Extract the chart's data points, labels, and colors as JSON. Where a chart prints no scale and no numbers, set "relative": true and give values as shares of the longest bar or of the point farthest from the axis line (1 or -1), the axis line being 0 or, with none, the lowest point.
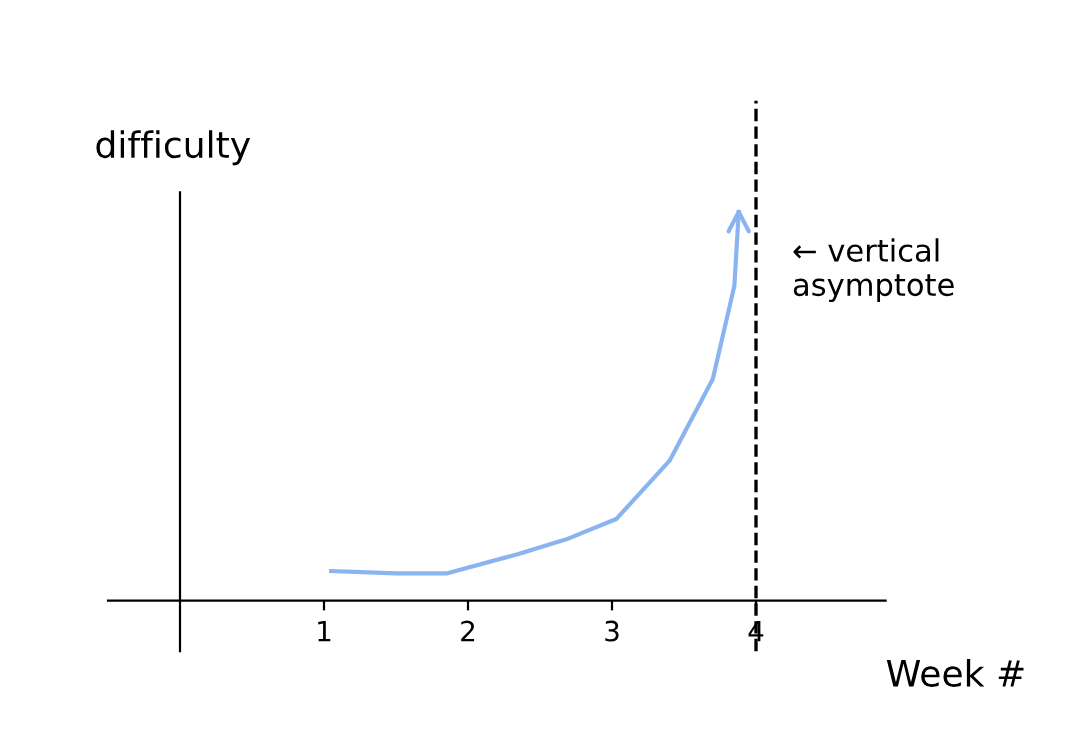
{
  "chart_data": {
    "type": "line",
    "relative": true,
    "xlabel": "Week #",
    "ylabel": "difficulty",
    "x": [
      1.05,
      1.5,
      1.85,
      2.35,
      2.7,
      3.03,
      3.4,
      3.7,
      3.85,
      3.88
    ],
    "series": [
      {
        "color": "#8ab4f0",
        "values": [
          0.076,
          0.07,
          0.07,
          0.12,
          0.16,
          0.21,
          0.36,
          0.57,
          0.81,
          1.0
        ]
      }
    ],
    "xlim": [
      -0.5,
      4.9
    ],
    "xticks": [
      1,
      2,
      3,
      4
    ],
    "ref_lines": [
      {
        "axis": "x",
        "value": 4,
        "label": "← vertical\nasymptote",
        "color": "#000000",
        "line_style": "dashed"
      }
    ],
    "grid": false,
    "legend": false,
    "marker": "none",
    "line_style": "solid"
  }
}
